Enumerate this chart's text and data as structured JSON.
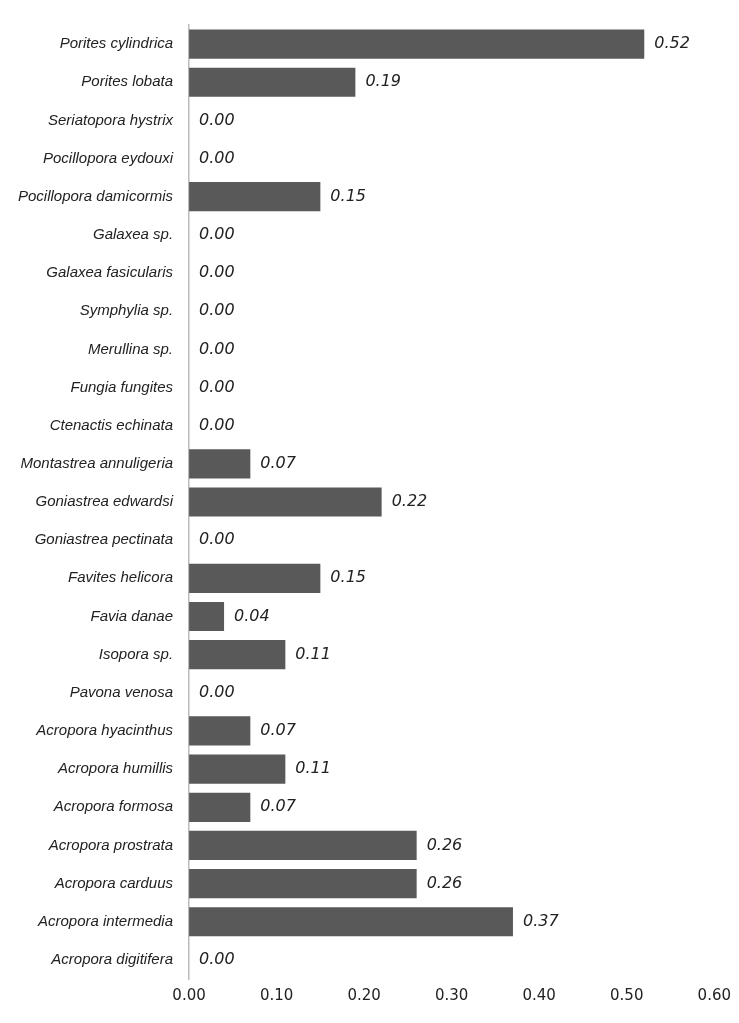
{
  "chart_data": {
    "type": "bar",
    "orientation": "horizontal",
    "categories": [
      "Porites cylindrica",
      "Porites lobata",
      "Seriatopora hystrix",
      "Pocillopora eydouxi",
      "Pocillopora damicormis",
      "Galaxea sp.",
      "Galaxea fasicularis",
      "Symphylia sp.",
      "Merullina sp.",
      "Fungia fungites",
      "Ctenactis echinata",
      "Montastrea annuligeria",
      "Goniastrea edwardsi",
      "Goniastrea pectinata",
      "Favites helicora",
      "Favia danae",
      "Isopora sp.",
      "Pavona venosa",
      "Acropora hyacinthus",
      "Acropora humillis",
      "Acropora formosa",
      "Acropora prostrata",
      "Acropora carduus",
      "Acropora intermedia",
      "Acropora digitifera"
    ],
    "values": [
      0.52,
      0.19,
      0,
      0,
      0.15,
      0,
      0,
      0,
      0,
      0,
      0,
      0.07,
      0.22,
      0,
      0.15,
      0.04,
      0.11,
      0,
      0.07,
      0.11,
      0.07,
      0.26,
      0.26,
      0.37,
      0
    ],
    "value_labels": [
      "0.52",
      "0.19",
      "0.00",
      "0.00",
      "0.15",
      "0.00",
      "0.00",
      "0.00",
      "0.00",
      "0.00",
      "0.00",
      "0.07",
      "0.22",
      "0.00",
      "0.15",
      "0.04",
      "0.11",
      "0.00",
      "0.07",
      "0.11",
      "0.07",
      "0.26",
      "0.26",
      "0.37",
      "0.00"
    ],
    "color": "#595959",
    "xlim": [
      0,
      0.6
    ],
    "xticks": [
      {
        "value": 0,
        "label": "0.00"
      },
      {
        "value": 0.1,
        "label": "0.10"
      },
      {
        "value": 0.2,
        "label": "0.20"
      },
      {
        "value": 0.3,
        "label": "0.30"
      },
      {
        "value": 0.4,
        "label": "0.40"
      },
      {
        "value": 0.5,
        "label": "0.50"
      },
      {
        "value": 0.6,
        "label": "0.60"
      }
    ],
    "grid": false,
    "legend": false
  }
}
